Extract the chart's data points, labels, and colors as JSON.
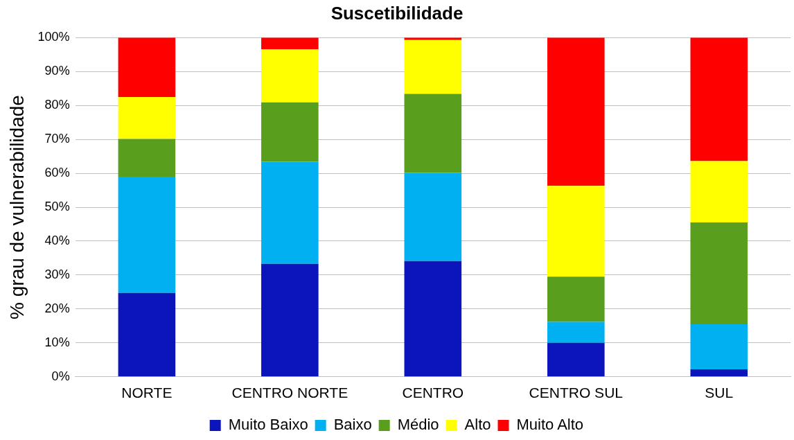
{
  "chart_data": {
    "type": "bar",
    "title": "Suscetibilidade",
    "ylabel": "% grau de vulnerabilidade",
    "categories": [
      "NORTE",
      "CENTRO NORTE",
      "CENTRO",
      "CENTRO SUL",
      "SUL"
    ],
    "series": [
      {
        "name": "Muito Baixo",
        "color": "#0c14bc",
        "values": [
          24.7,
          33.3,
          34.1,
          10.0,
          2.2
        ]
      },
      {
        "name": "Baixo",
        "color": "#00b0f0",
        "values": [
          34.3,
          30.1,
          26.0,
          6.2,
          13.3
        ]
      },
      {
        "name": "Médio",
        "color": "#5a9e1e",
        "values": [
          11.1,
          17.5,
          23.3,
          13.3,
          30.0
        ]
      },
      {
        "name": "Alto",
        "color": "#ffff00",
        "values": [
          12.4,
          15.6,
          15.9,
          26.8,
          18.1
        ]
      },
      {
        "name": "Muito Alto",
        "color": "#ff0000",
        "values": [
          17.5,
          3.5,
          0.7,
          43.7,
          36.4
        ]
      }
    ],
    "stacked": true,
    "ylim": [
      0,
      100
    ],
    "yticks": [
      {
        "value": 0,
        "label": "0%"
      },
      {
        "value": 10,
        "label": "10%"
      },
      {
        "value": 20,
        "label": "20%"
      },
      {
        "value": 30,
        "label": "30%"
      },
      {
        "value": 40,
        "label": "40%"
      },
      {
        "value": 50,
        "label": "50%"
      },
      {
        "value": 60,
        "label": "60%"
      },
      {
        "value": 70,
        "label": "70%"
      },
      {
        "value": 80,
        "label": "80%"
      },
      {
        "value": 90,
        "label": "90%"
      },
      {
        "value": 100,
        "label": "100%"
      }
    ],
    "grid": "y",
    "legend": "bottom"
  }
}
